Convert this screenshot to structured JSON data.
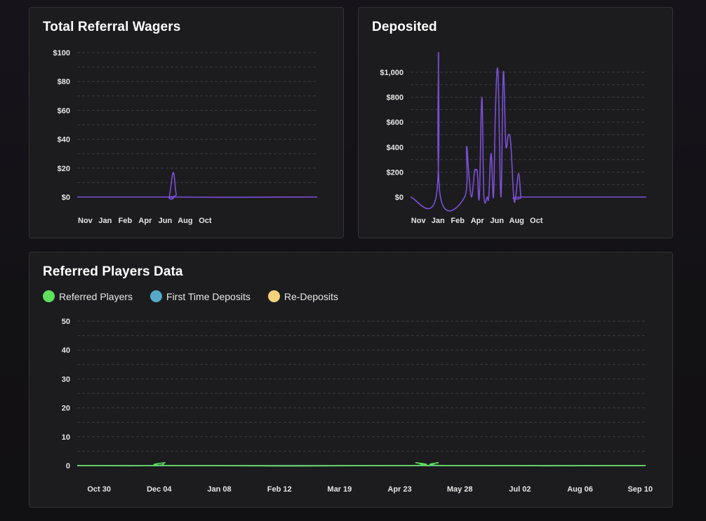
{
  "colors": {
    "line": "#7b4fd6",
    "grid": "#3a3a3e",
    "referred": "#5ee05e",
    "first_time": "#56a9c6",
    "re_deposits": "#f2d27a"
  },
  "wagers_panel": {
    "title": "Total Referral Wagers"
  },
  "deposited_panel": {
    "title": "Deposited"
  },
  "players_panel": {
    "title": "Referred Players Data",
    "legend": [
      {
        "label": "Referred Players"
      },
      {
        "label": "First Time Deposits"
      },
      {
        "label": "Re-Deposits"
      }
    ]
  },
  "chart_data": [
    {
      "type": "line",
      "title": "Total Referral Wagers",
      "ylim": [
        0,
        100
      ],
      "yticks": [
        0,
        20,
        40,
        60,
        80,
        100
      ],
      "ytick_labels": [
        "$0",
        "$20",
        "$40",
        "$60",
        "$80",
        "$100"
      ],
      "xlim": [
        0,
        12
      ],
      "xticks": [
        0.4,
        1.4,
        2.4,
        3.4,
        4.4,
        5.4,
        6.4
      ],
      "xtick_labels": [
        "Nov",
        "Jan",
        "Feb",
        "Apr",
        "Jun",
        "Aug",
        "Oct"
      ],
      "x": [
        0,
        4.4,
        4.6,
        4.8,
        4.95,
        5.1,
        12
      ],
      "values": [
        0,
        0,
        0,
        17,
        2,
        0,
        0
      ]
    },
    {
      "type": "line",
      "title": "Deposited",
      "ylim": [
        0,
        1000
      ],
      "yticks": [
        0,
        200,
        400,
        600,
        800,
        1000
      ],
      "ytick_labels": [
        "$0",
        "$200",
        "$400",
        "$600",
        "$800",
        "$1,000"
      ],
      "xlim": [
        0,
        12
      ],
      "xticks": [
        0.4,
        1.4,
        2.4,
        3.4,
        4.4,
        5.4,
        6.4
      ],
      "xtick_labels": [
        "Nov",
        "Jan",
        "Feb",
        "Apr",
        "Jun",
        "Aug",
        "Oct"
      ],
      "x": [
        0,
        1.3,
        1.42,
        1.52,
        2.75,
        2.85,
        2.95,
        3.1,
        3.25,
        3.3,
        3.4,
        3.5,
        3.63,
        3.73,
        3.9,
        3.98,
        4.1,
        4.22,
        4.32,
        4.45,
        4.6,
        4.72,
        4.85,
        4.98,
        5.1,
        5.25,
        5.35,
        5.5,
        5.62,
        5.75,
        12
      ],
      "values": [
        0,
        0,
        1160,
        0,
        0,
        400,
        220,
        0,
        200,
        215,
        200,
        0,
        800,
        20,
        0,
        0,
        350,
        0,
        700,
        1000,
        0,
        1000,
        420,
        500,
        430,
        0,
        0,
        190,
        0,
        0,
        0
      ]
    },
    {
      "type": "line",
      "title": "Referred Players Data",
      "ylim": [
        0,
        50
      ],
      "yticks": [
        0,
        10,
        20,
        30,
        40,
        50
      ],
      "ytick_labels": [
        "0",
        "10",
        "20",
        "30",
        "40",
        "50"
      ],
      "xlim": [
        0,
        52
      ],
      "xticks": [
        2,
        7.5,
        13,
        18.5,
        24,
        29.5,
        35,
        40.5,
        46,
        51.5
      ],
      "xtick_labels": [
        "Oct 30",
        "Dec 04",
        "Jan 08",
        "Feb 12",
        "Mar 19",
        "Apr 23",
        "May 28",
        "Jul 02",
        "Aug 06",
        "Sep 10"
      ],
      "series": [
        {
          "name": "Referred Players",
          "x": [
            0,
            7,
            8,
            9,
            30,
            31,
            32,
            33,
            34,
            60
          ],
          "values": [
            0,
            0,
            1,
            0,
            0,
            1,
            0,
            1,
            0,
            0
          ]
        },
        {
          "name": "First Time Deposits",
          "x": [
            0,
            60
          ],
          "values": [
            0,
            0
          ]
        },
        {
          "name": "Re-Deposits",
          "x": [
            0,
            60
          ],
          "values": [
            0,
            0
          ]
        }
      ]
    }
  ]
}
